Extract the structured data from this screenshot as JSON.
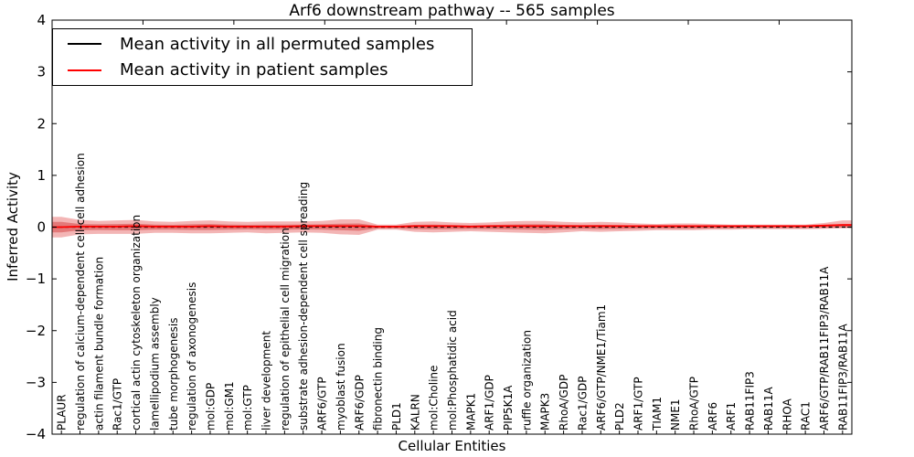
{
  "chart_data": {
    "type": "line",
    "title": "Arf6 downstream pathway -- 565 samples",
    "xlabel": "Cellular Entities",
    "ylabel": "Inferred Activity",
    "ylim": [
      -4,
      4
    ],
    "ytick_values": [
      4,
      3,
      2,
      1,
      0,
      -1,
      -2,
      -3,
      -4
    ],
    "ytick_labels": [
      "4",
      "3",
      "2",
      "1",
      "0",
      "−1",
      "−2",
      "−3",
      "−4"
    ],
    "grid": false,
    "legend_position": "upper left",
    "categories": [
      "PLAUR",
      "regulation of calcium-dependent cell-cell adhesion",
      "actin filament bundle formation",
      "Rac1/GTP",
      "cortical actin cytoskeleton organization",
      "lamellipodium assembly",
      "tube morphogenesis",
      "regulation of axonogenesis",
      "mol:GDP",
      "mol:GM1",
      "mol:GTP",
      "liver development",
      "regulation of epithelial cell migration",
      "substrate adhesion-dependent cell spreading",
      "ARF6/GTP",
      "myoblast fusion",
      "ARF6/GDP",
      "fibronectin binding",
      "PLD1",
      "KALRN",
      "mol:Choline",
      "mol:Phosphatidic acid",
      "MAPK1",
      "ARF1/GDP",
      "PIP5K1A",
      "ruffle organization",
      "MAPK3",
      "RhoA/GDP",
      "Rac1/GDP",
      "ARF6/GTP/NME1/Tiam1",
      "PLD2",
      "ARF1/GTP",
      "TIAM1",
      "NME1",
      "RhoA/GTP",
      "ARF6",
      "ARF1",
      "RAB11FIP3",
      "RAB11A",
      "RHOA",
      "RAC1",
      "ARF6/GTP/RAB11FIP3/RAB11A",
      "RAB11FIP3/RAB11A"
    ],
    "series": [
      {
        "name": "Mean activity in all permuted samples",
        "color": "#000000",
        "style": "dashed",
        "values": [
          0,
          0,
          0,
          0,
          0,
          0,
          0,
          0,
          0,
          0,
          0,
          0,
          0,
          0,
          0,
          0,
          0,
          0,
          0,
          0,
          0,
          0,
          0,
          0,
          0,
          0,
          0,
          0,
          0,
          0,
          0,
          0,
          0,
          0,
          0,
          0,
          0,
          0,
          0,
          0,
          0,
          0,
          0
        ]
      },
      {
        "name": "Mean activity in patient samples",
        "color": "#ff0000",
        "style": "solid",
        "values": [
          0.0,
          0.01,
          0.01,
          0.01,
          0.02,
          0.01,
          0.01,
          0.01,
          0.02,
          0.01,
          0.01,
          0.01,
          0.01,
          0.02,
          0.02,
          0.02,
          0.02,
          0.01,
          0.01,
          0.02,
          0.02,
          0.02,
          0.01,
          0.02,
          0.02,
          0.02,
          0.02,
          0.02,
          0.02,
          0.02,
          0.02,
          0.02,
          0.02,
          0.02,
          0.02,
          0.02,
          0.02,
          0.02,
          0.02,
          0.02,
          0.02,
          0.03,
          0.04
        ]
      }
    ],
    "band_outer": {
      "color": "#e03c3c",
      "opacity": 0.38,
      "upper": [
        0.2,
        0.14,
        0.12,
        0.13,
        0.14,
        0.11,
        0.1,
        0.12,
        0.13,
        0.11,
        0.1,
        0.11,
        0.11,
        0.11,
        0.12,
        0.15,
        0.15,
        0.05,
        0.05,
        0.1,
        0.11,
        0.09,
        0.08,
        0.09,
        0.11,
        0.12,
        0.12,
        0.1,
        0.09,
        0.1,
        0.09,
        0.07,
        0.06,
        0.07,
        0.07,
        0.06,
        0.05,
        0.05,
        0.05,
        0.05,
        0.05,
        0.08,
        0.13
      ],
      "lower": [
        -0.2,
        -0.14,
        -0.13,
        -0.13,
        -0.13,
        -0.11,
        -0.11,
        -0.12,
        -0.12,
        -0.11,
        -0.1,
        -0.12,
        -0.11,
        -0.1,
        -0.11,
        -0.14,
        -0.15,
        -0.05,
        -0.05,
        -0.09,
        -0.1,
        -0.09,
        -0.08,
        -0.09,
        -0.1,
        -0.11,
        -0.12,
        -0.1,
        -0.08,
        -0.09,
        -0.08,
        -0.07,
        -0.06,
        -0.06,
        -0.06,
        -0.05,
        -0.05,
        -0.04,
        -0.04,
        -0.04,
        -0.04,
        -0.03,
        -0.02
      ]
    },
    "band_inner": {
      "color": "#d03030",
      "opacity": 0.45,
      "upper": [
        0.1,
        0.06,
        0.055,
        0.06,
        0.065,
        0.05,
        0.045,
        0.055,
        0.06,
        0.05,
        0.045,
        0.05,
        0.05,
        0.05,
        0.055,
        0.065,
        0.07,
        0.025,
        0.025,
        0.045,
        0.05,
        0.04,
        0.035,
        0.04,
        0.05,
        0.055,
        0.055,
        0.045,
        0.04,
        0.045,
        0.04,
        0.032,
        0.028,
        0.032,
        0.032,
        0.028,
        0.024,
        0.022,
        0.022,
        0.022,
        0.022,
        0.04,
        0.06
      ],
      "lower": [
        -0.1,
        -0.06,
        -0.055,
        -0.06,
        -0.06,
        -0.05,
        -0.05,
        -0.055,
        -0.055,
        -0.05,
        -0.045,
        -0.05,
        -0.05,
        -0.045,
        -0.05,
        -0.06,
        -0.07,
        -0.025,
        -0.025,
        -0.04,
        -0.045,
        -0.04,
        -0.035,
        -0.04,
        -0.045,
        -0.05,
        -0.055,
        -0.045,
        -0.035,
        -0.04,
        -0.035,
        -0.03,
        -0.027,
        -0.028,
        -0.028,
        -0.024,
        -0.022,
        -0.018,
        -0.018,
        -0.018,
        -0.018,
        -0.015,
        -0.01
      ]
    }
  },
  "legend": {
    "items": [
      {
        "label": "Mean activity in all permuted samples",
        "color": "#000000"
      },
      {
        "label": "Mean activity in patient samples",
        "color": "#ff0000"
      }
    ]
  }
}
